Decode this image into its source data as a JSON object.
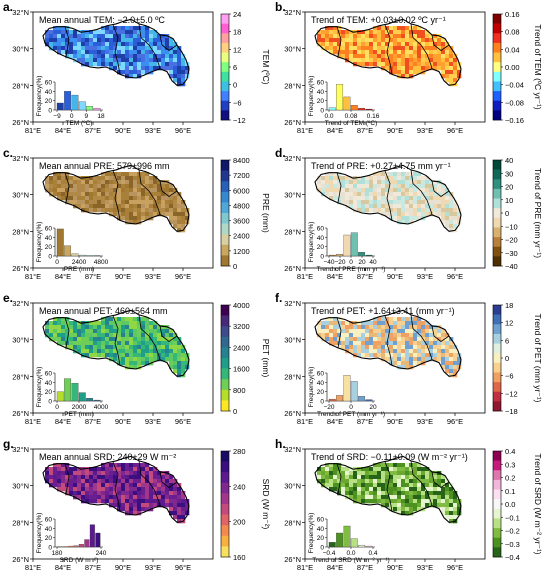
{
  "panels": [
    {
      "id": "a",
      "letter": "a.",
      "title": "Mean annual TEM: −2.0±5.0 ºC",
      "cbar_label": "TEM (ºC)",
      "cbar_ticks": [
        "24",
        "18",
        "12",
        "6",
        "0",
        "−6",
        "−12"
      ],
      "cbar_colors": [
        "#ff9ff0",
        "#ff5fd0",
        "#ffa0a0",
        "#ffd080",
        "#e8ff80",
        "#80ff80",
        "#40e0a0",
        "#40c0e0",
        "#4080ff",
        "#2040c0",
        "#101080"
      ],
      "map_colors": [
        "#2b5fd9",
        "#3a8ff0",
        "#1f3fa8",
        "#46b6e8",
        "#7fd8ff",
        "#4a6fe0"
      ],
      "hist_x_ticks": [
        "−9",
        "0",
        "9",
        "18"
      ],
      "hist_xlabel": "TEM (ºC)",
      "hist_values": [
        15,
        40,
        32,
        18,
        8,
        4
      ],
      "hist_colors": [
        "#1f3fa8",
        "#2b5fd9",
        "#46b6e8",
        "#7fd8ff",
        "#80ff80",
        "#ff9ff0"
      ]
    },
    {
      "id": "b",
      "letter": "b.",
      "title": "Trend of TEM: +0.03±0.02 ºC yr⁻¹",
      "cbar_label": "Trend of TEM (ºC yr⁻¹)",
      "cbar_ticks": [
        "0.16",
        "0.08",
        "0.04",
        "0.00",
        "−0.04",
        "−0.08",
        "−0.16"
      ],
      "cbar_colors": [
        "#800000",
        "#c00000",
        "#f03020",
        "#ff8020",
        "#ffc040",
        "#ffff80",
        "#80ffff",
        "#40c0ff",
        "#2060ff",
        "#1020c0",
        "#000080"
      ],
      "map_colors": [
        "#ffc040",
        "#ffa030",
        "#ff8020",
        "#ffe060",
        "#f05020",
        "#ffd050"
      ],
      "hist_x_ticks": [
        "0.0",
        "0.08",
        "0.16"
      ],
      "hist_xlabel": "Trend of TEM (ºC)",
      "hist_values": [
        5,
        55,
        28,
        10,
        4,
        2
      ],
      "hist_colors": [
        "#80ffff",
        "#ffff60",
        "#ffc040",
        "#ff8020",
        "#f03020",
        "#c00000"
      ]
    },
    {
      "id": "c",
      "letter": "c.",
      "title": "Mean annual PRE: 579±996 mm",
      "cbar_label": "PRE (mm)",
      "cbar_ticks": [
        "8400",
        "7200",
        "6000",
        "4800",
        "3600",
        "2400",
        "1200",
        "0"
      ],
      "cbar_colors": [
        "#101868",
        "#203890",
        "#2860b8",
        "#3888d0",
        "#50a8d8",
        "#80c8d0",
        "#b0d8c8",
        "#d8d0a0",
        "#c8a860",
        "#a07830"
      ],
      "map_colors": [
        "#a07830",
        "#b08848",
        "#c8a060",
        "#8a6428",
        "#b89560",
        "#a8803a"
      ],
      "hist_x_ticks": [
        "0",
        "2400",
        "4800"
      ],
      "hist_xlabel": "PRE (mm)",
      "hist_values": [
        58,
        22,
        5,
        2,
        1,
        1
      ],
      "hist_colors": [
        "#a07830",
        "#c8a860",
        "#d8d0a0",
        "#b0d8c8",
        "#80c8d0",
        "#3888d0"
      ]
    },
    {
      "id": "d",
      "letter": "d.",
      "title": "Trend of PRE: +0.27±4.75 mm yr⁻¹",
      "cbar_label": "Trend of PRE (mm yr⁻¹)",
      "cbar_ticks": [
        "40",
        "30",
        "20",
        "10",
        "0",
        "−10",
        "−20",
        "−30",
        "−40"
      ],
      "cbar_colors": [
        "#004838",
        "#106858",
        "#309080",
        "#70c0b0",
        "#b0e0d8",
        "#f0e8d8",
        "#f0d8b0",
        "#d8b070",
        "#b88038",
        "#805010",
        "#503000"
      ],
      "map_colors": [
        "#f0e8d8",
        "#b0e0d8",
        "#f0d8b0",
        "#e8e0d0",
        "#c8e8e0",
        "#d8c8a0"
      ],
      "hist_x_ticks": [
        "−40",
        "−20",
        "0",
        "20",
        "40"
      ],
      "hist_xlabel": "Trend of PRE (mm yr⁻¹)",
      "hist_values": [
        2,
        4,
        45,
        50,
        8,
        2
      ],
      "hist_colors": [
        "#b88038",
        "#d8b070",
        "#f0d8b0",
        "#70c0b0",
        "#309080",
        "#106858"
      ]
    },
    {
      "id": "e",
      "letter": "e.",
      "title": "Mean annual PET: 460±564 mm",
      "cbar_label": "PET (mm)",
      "cbar_ticks": [
        "4000",
        "3200",
        "2400",
        "1600",
        "800",
        "0"
      ],
      "cbar_colors": [
        "#400050",
        "#482878",
        "#3e4a89",
        "#31688e",
        "#26828e",
        "#1f9e89",
        "#35b779",
        "#6ece58",
        "#b5de2b",
        "#fde725"
      ],
      "map_colors": [
        "#35b779",
        "#6ece58",
        "#1f9e89",
        "#5ec962",
        "#26828e",
        "#8fd744"
      ],
      "hist_x_ticks": [
        "0",
        "2000",
        "4000"
      ],
      "hist_xlabel": "PET (mm)",
      "hist_values": [
        20,
        48,
        38,
        18,
        6,
        2
      ],
      "hist_colors": [
        "#b5de2b",
        "#6ece58",
        "#35b779",
        "#1f9e89",
        "#26828e",
        "#31688e"
      ]
    },
    {
      "id": "f",
      "letter": "f.",
      "title": "Trend of PET: +1.64±3.41 (mm yr⁻¹)",
      "cbar_label": "Trend of PET (mm yr⁻¹)",
      "cbar_ticks": [
        "18",
        "12",
        "6",
        "0",
        "−6",
        "−12",
        "−18"
      ],
      "cbar_colors": [
        "#2c3e94",
        "#3f6fb5",
        "#6fa0cf",
        "#a8d0e0",
        "#e0f0e0",
        "#f8f0c0",
        "#f8d090",
        "#f0a060",
        "#e06848",
        "#c03040",
        "#901830"
      ],
      "map_colors": [
        "#f8d090",
        "#f0a060",
        "#f8f0c0",
        "#a8d0e0",
        "#e8b878",
        "#6fa0cf"
      ],
      "hist_x_ticks": [
        "−20",
        "0",
        "20"
      ],
      "hist_xlabel": "Trend of PET (mm yr⁻¹)",
      "hist_values": [
        4,
        12,
        55,
        42,
        10,
        3
      ],
      "hist_colors": [
        "#e06848",
        "#f0a060",
        "#f8e0a0",
        "#a8d0e0",
        "#6fa0cf",
        "#3f6fb5"
      ]
    },
    {
      "id": "g",
      "letter": "g.",
      "title": "Mean annual SRD: 240±29 W m⁻²",
      "cbar_label": "SRD (W m⁻²)",
      "cbar_ticks": [
        "280",
        "240",
        "200",
        "160"
      ],
      "cbar_colors": [
        "#1a0c64",
        "#3b0f80",
        "#5c1a8e",
        "#7e2890",
        "#a0378a",
        "#c24a7c",
        "#df6468",
        "#f28a50",
        "#f8b040",
        "#f8e060"
      ],
      "map_colors": [
        "#5c1a8e",
        "#7e2890",
        "#3b0f80",
        "#a0378a",
        "#6a1e90",
        "#c24a7c"
      ],
      "hist_x_ticks": [
        "180",
        "240"
      ],
      "hist_xlabel": "SRD (W m⁻²)",
      "hist_values": [
        1,
        1,
        2,
        3,
        6,
        16,
        48,
        30
      ],
      "hist_colors": [
        "#f8e060",
        "#f8b040",
        "#f28a50",
        "#df6468",
        "#c24a7c",
        "#a0378a",
        "#5c1a8e",
        "#3b0f80"
      ]
    },
    {
      "id": "h",
      "letter": "h.",
      "title": "Trend of SRD: −0.11±0.09 (W m⁻² yr⁻¹)",
      "cbar_label": "Trend of SRD (W m⁻² yr⁻¹)",
      "cbar_ticks": [
        "0.4",
        "0.3",
        "0.2",
        "0.1",
        "0.0",
        "−0.1",
        "−0.2",
        "−0.3",
        "−0.4"
      ],
      "cbar_colors": [
        "#8e0152",
        "#c51b7d",
        "#de77ae",
        "#f1b6da",
        "#fde0ef",
        "#f7f7f7",
        "#e6f5d0",
        "#b8e186",
        "#7fbc41",
        "#4d9221",
        "#276419"
      ],
      "map_colors": [
        "#4d9221",
        "#7fbc41",
        "#b8e186",
        "#276419",
        "#e6f5d0",
        "#6aa832"
      ],
      "hist_x_ticks": [
        "−0.4",
        "0.0",
        "0.4"
      ],
      "hist_xlabel": "Trend of SRD (W m⁻² yr⁻¹)",
      "hist_values": [
        10,
        30,
        45,
        18,
        4,
        2
      ],
      "hist_colors": [
        "#276419",
        "#4d9221",
        "#7fbc41",
        "#b8e186",
        "#e6f5d0",
        "#f1b6da"
      ]
    }
  ],
  "axes": {
    "x_ticks": [
      "81°E",
      "84°E",
      "87°E",
      "90°E",
      "93°E",
      "96°E"
    ],
    "y_ticks": [
      "32°N",
      "30°N",
      "28°N",
      "26°N"
    ],
    "hist_ylabel": "Frequency(%)",
    "hist_y_ticks": [
      "0",
      "20",
      "40",
      "60"
    ]
  }
}
